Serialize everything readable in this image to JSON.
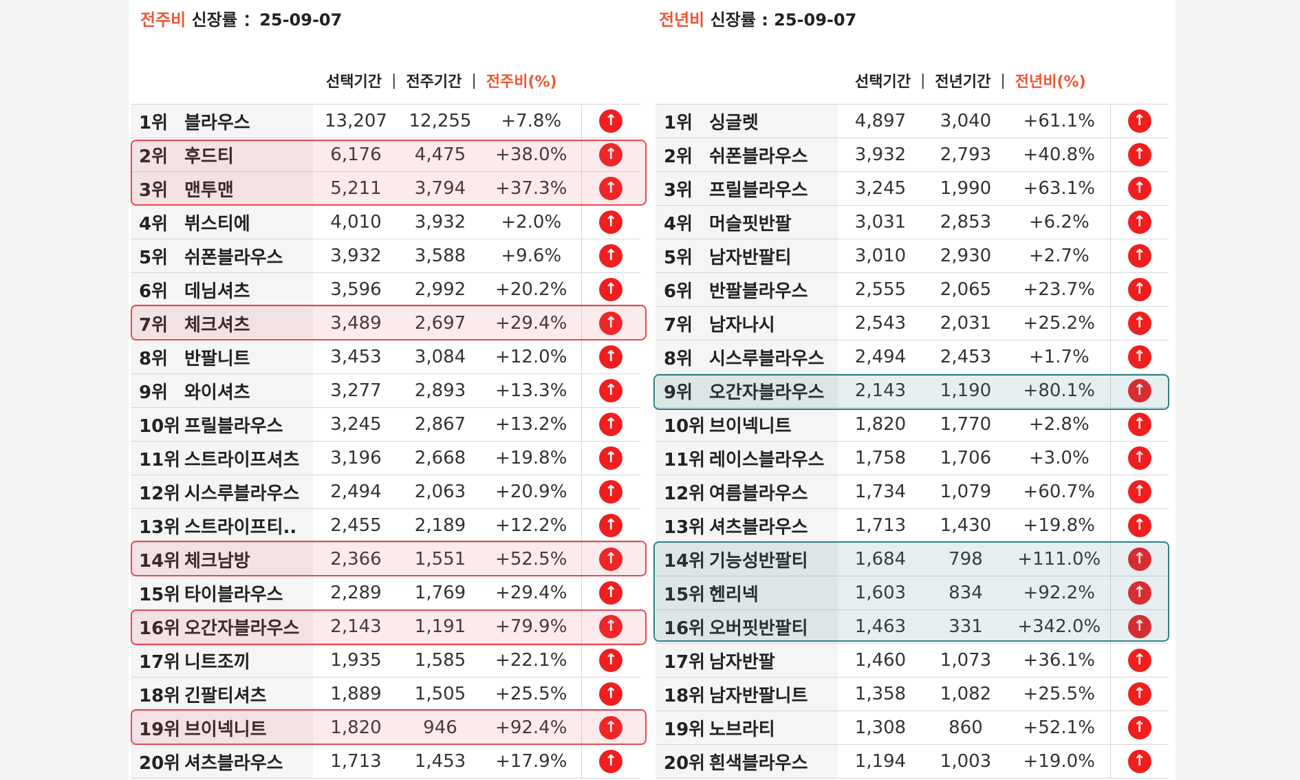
{
  "left": {
    "title_accent": "전주비",
    "title_rest": " 신장률 ：25-09-07",
    "col_selected": "선택기간",
    "col_compare": "전주기간",
    "col_ratio": "전주비(%)",
    "sep": "|",
    "rows": [
      {
        "rank": "1위",
        "name": "블라우스",
        "sel": "13,207",
        "cmp": "12,255",
        "pct": "+7.8%"
      },
      {
        "rank": "2위",
        "name": "후드티",
        "sel": "6,176",
        "cmp": "4,475",
        "pct": "+38.0%"
      },
      {
        "rank": "3위",
        "name": "맨투맨",
        "sel": "5,211",
        "cmp": "3,794",
        "pct": "+37.3%"
      },
      {
        "rank": "4위",
        "name": "뷔스티에",
        "sel": "4,010",
        "cmp": "3,932",
        "pct": "+2.0%"
      },
      {
        "rank": "5위",
        "name": "쉬폰블라우스",
        "sel": "3,932",
        "cmp": "3,588",
        "pct": "+9.6%"
      },
      {
        "rank": "6위",
        "name": "데님셔츠",
        "sel": "3,596",
        "cmp": "2,992",
        "pct": "+20.2%"
      },
      {
        "rank": "7위",
        "name": "체크셔츠",
        "sel": "3,489",
        "cmp": "2,697",
        "pct": "+29.4%"
      },
      {
        "rank": "8위",
        "name": "반팔니트",
        "sel": "3,453",
        "cmp": "3,084",
        "pct": "+12.0%"
      },
      {
        "rank": "9위",
        "name": "와이셔츠",
        "sel": "3,277",
        "cmp": "2,893",
        "pct": "+13.3%"
      },
      {
        "rank": "10위",
        "name": "프릴블라우스",
        "sel": "3,245",
        "cmp": "2,867",
        "pct": "+13.2%"
      },
      {
        "rank": "11위",
        "name": "스트라이프셔츠",
        "sel": "3,196",
        "cmp": "2,668",
        "pct": "+19.8%"
      },
      {
        "rank": "12위",
        "name": "시스루블라우스",
        "sel": "2,494",
        "cmp": "2,063",
        "pct": "+20.9%"
      },
      {
        "rank": "13위",
        "name": "스트라이프티..",
        "sel": "2,455",
        "cmp": "2,189",
        "pct": "+12.2%"
      },
      {
        "rank": "14위",
        "name": "체크남방",
        "sel": "2,366",
        "cmp": "1,551",
        "pct": "+52.5%"
      },
      {
        "rank": "15위",
        "name": "타이블라우스",
        "sel": "2,289",
        "cmp": "1,769",
        "pct": "+29.4%"
      },
      {
        "rank": "16위",
        "name": "오간자블라우스",
        "sel": "2,143",
        "cmp": "1,191",
        "pct": "+79.9%"
      },
      {
        "rank": "17위",
        "name": "니트조끼",
        "sel": "1,935",
        "cmp": "1,585",
        "pct": "+22.1%"
      },
      {
        "rank": "18위",
        "name": "긴팔티셔츠",
        "sel": "1,889",
        "cmp": "1,505",
        "pct": "+25.5%"
      },
      {
        "rank": "19위",
        "name": "브이넥니트",
        "sel": "1,820",
        "cmp": "946",
        "pct": "+92.4%"
      },
      {
        "rank": "20위",
        "name": "셔츠블라우스",
        "sel": "1,713",
        "cmp": "1,453",
        "pct": "+17.9%"
      }
    ]
  },
  "right": {
    "title_accent": "전년비",
    "title_rest": " 신장률 : 25-09-07",
    "col_selected": "선택기간",
    "col_compare": "전년기간",
    "col_ratio": "전년비(%)",
    "sep": "|",
    "rows": [
      {
        "rank": "1위",
        "name": "싱글렛",
        "sel": "4,897",
        "cmp": "3,040",
        "pct": "+61.1%"
      },
      {
        "rank": "2위",
        "name": "쉬폰블라우스",
        "sel": "3,932",
        "cmp": "2,793",
        "pct": "+40.8%"
      },
      {
        "rank": "3위",
        "name": "프릴블라우스",
        "sel": "3,245",
        "cmp": "1,990",
        "pct": "+63.1%"
      },
      {
        "rank": "4위",
        "name": "머슬핏반팔",
        "sel": "3,031",
        "cmp": "2,853",
        "pct": "+6.2%"
      },
      {
        "rank": "5위",
        "name": "남자반팔티",
        "sel": "3,010",
        "cmp": "2,930",
        "pct": "+2.7%"
      },
      {
        "rank": "6위",
        "name": "반팔블라우스",
        "sel": "2,555",
        "cmp": "2,065",
        "pct": "+23.7%"
      },
      {
        "rank": "7위",
        "name": "남자나시",
        "sel": "2,543",
        "cmp": "2,031",
        "pct": "+25.2%"
      },
      {
        "rank": "8위",
        "name": "시스루블라우스",
        "sel": "2,494",
        "cmp": "2,453",
        "pct": "+1.7%"
      },
      {
        "rank": "9위",
        "name": "오간자블라우스",
        "sel": "2,143",
        "cmp": "1,190",
        "pct": "+80.1%"
      },
      {
        "rank": "10위",
        "name": "브이넥니트",
        "sel": "1,820",
        "cmp": "1,770",
        "pct": "+2.8%"
      },
      {
        "rank": "11위",
        "name": "레이스블라우스",
        "sel": "1,758",
        "cmp": "1,706",
        "pct": "+3.0%"
      },
      {
        "rank": "12위",
        "name": "여름블라우스",
        "sel": "1,734",
        "cmp": "1,079",
        "pct": "+60.7%"
      },
      {
        "rank": "13위",
        "name": "셔츠블라우스",
        "sel": "1,713",
        "cmp": "1,430",
        "pct": "+19.8%"
      },
      {
        "rank": "14위",
        "name": "기능성반팔티",
        "sel": "1,684",
        "cmp": "798",
        "pct": "+111.0%"
      },
      {
        "rank": "15위",
        "name": "헨리넥",
        "sel": "1,603",
        "cmp": "834",
        "pct": "+92.2%"
      },
      {
        "rank": "16위",
        "name": "오버핏반팔티",
        "sel": "1,463",
        "cmp": "331",
        "pct": "+342.0%"
      },
      {
        "rank": "17위",
        "name": "남자반팔",
        "sel": "1,460",
        "cmp": "1,073",
        "pct": "+36.1%"
      },
      {
        "rank": "18위",
        "name": "남자반팔니트",
        "sel": "1,358",
        "cmp": "1,082",
        "pct": "+25.5%"
      },
      {
        "rank": "19위",
        "name": "노브라티",
        "sel": "1,308",
        "cmp": "860",
        "pct": "+52.1%"
      },
      {
        "rank": "20위",
        "name": "흰색블라우스",
        "sel": "1,194",
        "cmp": "1,003",
        "pct": "+19.0%"
      }
    ]
  },
  "icons": {
    "trend": "arrow-up-circle-icon",
    "glyph": "↑"
  },
  "colors": {
    "accent": "#ee5634",
    "arrow": "#f01e1e",
    "highlight_red": "#e8484e",
    "highlight_teal": "#2b8183"
  }
}
